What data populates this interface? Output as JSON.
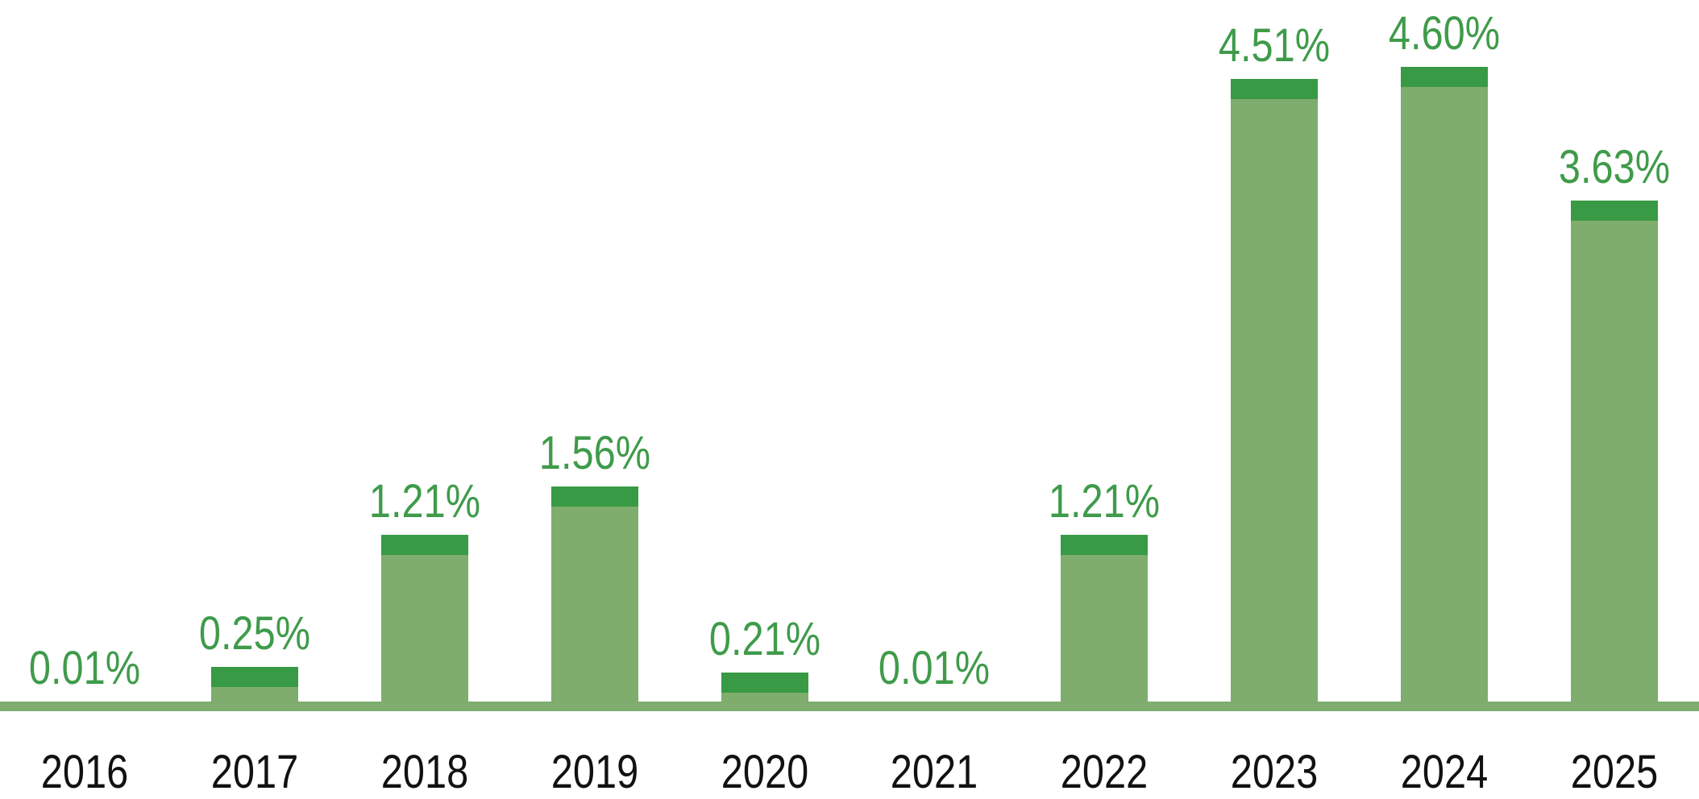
{
  "chart_data": {
    "type": "bar",
    "title": "",
    "xlabel": "",
    "ylabel": "",
    "unit": "%",
    "categories": [
      "2016",
      "2017",
      "2018",
      "2019",
      "2020",
      "2021",
      "2022",
      "2023",
      "2024",
      "2025"
    ],
    "values": [
      0.01,
      0.25,
      1.21,
      1.56,
      0.21,
      0.01,
      1.21,
      4.51,
      4.6,
      3.63
    ],
    "value_labels": [
      "0.01%",
      "0.25%",
      "1.21%",
      "1.56%",
      "0.21%",
      "0.01%",
      "1.21%",
      "4.51%",
      "4.60%",
      "3.63%"
    ],
    "ylim": [
      0,
      5
    ],
    "grid": false,
    "legend": false,
    "axis_line": "bottom-only",
    "colors": {
      "bar_body": "#7ead6e",
      "bar_cap": "#389a44",
      "baseline": "#7ead6e",
      "value_label": "#3f9b4a",
      "category_label": "#111111",
      "background": "#ffffff"
    }
  }
}
